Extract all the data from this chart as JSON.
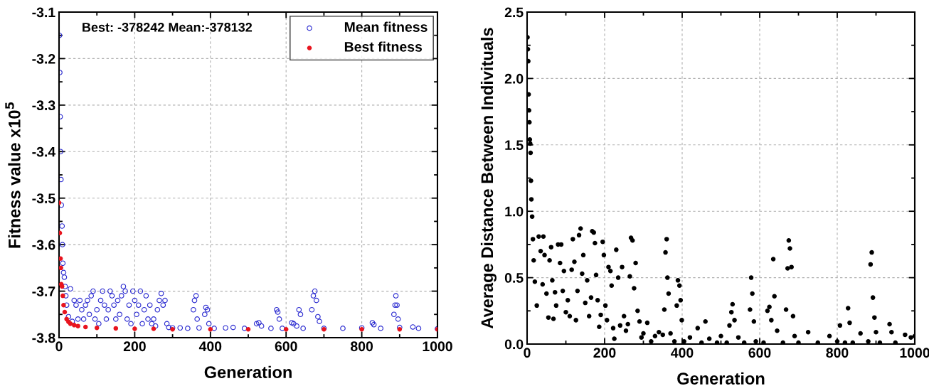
{
  "chart_data": [
    {
      "type": "scatter",
      "xlabel": "Generation",
      "ylabel": "Fitness value x10$^{5}$",
      "annotations": [
        "Best: -378242 Mean:-378132"
      ],
      "xlim": [
        0,
        1000
      ],
      "xticks": [
        0,
        200,
        400,
        600,
        800,
        1000
      ],
      "ylim": [
        -3.8,
        -3.1
      ],
      "yticks": [
        -3.8,
        -3.7,
        -3.6,
        -3.5,
        -3.4,
        -3.3,
        -3.2,
        -3.1
      ],
      "grid": true,
      "legend": "top right",
      "marker": "circle",
      "series": [
        {
          "name": "Mean fitness",
          "color": "#2b2bd0",
          "x": [
            1,
            2,
            3,
            4,
            5,
            6,
            8,
            9,
            10,
            12,
            14,
            16,
            18,
            20,
            25,
            30,
            35,
            40,
            45,
            50,
            55,
            60,
            65,
            70,
            75,
            80,
            85,
            90,
            95,
            100,
            105,
            110,
            115,
            120,
            125,
            130,
            135,
            140,
            145,
            150,
            155,
            160,
            165,
            170,
            175,
            180,
            185,
            190,
            195,
            200,
            205,
            210,
            215,
            220,
            225,
            230,
            235,
            240,
            245,
            250,
            255,
            260,
            265,
            270,
            275,
            280,
            285,
            290,
            300,
            320,
            340,
            355,
            358,
            362,
            365,
            370,
            385,
            388,
            392,
            396,
            410,
            440,
            460,
            490,
            522,
            528,
            535,
            560,
            575,
            578,
            582,
            590,
            615,
            620,
            628,
            634,
            638,
            645,
            668,
            672,
            676,
            680,
            684,
            688,
            700,
            750,
            800,
            828,
            832,
            850,
            885,
            888,
            890,
            893,
            896,
            900,
            935,
            950,
            1000
          ],
          "values": [
            -3.15,
            -3.23,
            -3.325,
            -3.4,
            -3.46,
            -3.515,
            -3.56,
            -3.6,
            -3.64,
            -3.66,
            -3.67,
            -3.69,
            -3.71,
            -3.73,
            -3.755,
            -3.695,
            -3.765,
            -3.72,
            -3.73,
            -3.76,
            -3.72,
            -3.74,
            -3.76,
            -3.73,
            -3.72,
            -3.75,
            -3.71,
            -3.7,
            -3.76,
            -3.74,
            -3.77,
            -3.72,
            -3.7,
            -3.73,
            -3.76,
            -3.74,
            -3.7,
            -3.71,
            -3.73,
            -3.76,
            -3.72,
            -3.75,
            -3.71,
            -3.69,
            -3.7,
            -3.76,
            -3.73,
            -3.77,
            -3.7,
            -3.72,
            -3.75,
            -3.73,
            -3.7,
            -3.77,
            -3.74,
            -3.71,
            -3.76,
            -3.73,
            -3.77,
            -3.76,
            -3.775,
            -3.74,
            -3.72,
            -3.705,
            -3.73,
            -3.72,
            -3.77,
            -3.778,
            -3.779,
            -3.779,
            -3.78,
            -3.74,
            -3.72,
            -3.71,
            -3.76,
            -3.779,
            -3.75,
            -3.735,
            -3.74,
            -3.77,
            -3.78,
            -3.779,
            -3.778,
            -3.78,
            -3.77,
            -3.768,
            -3.775,
            -3.78,
            -3.74,
            -3.745,
            -3.76,
            -3.78,
            -3.768,
            -3.77,
            -3.775,
            -3.74,
            -3.75,
            -3.78,
            -3.74,
            -3.71,
            -3.7,
            -3.72,
            -3.755,
            -3.765,
            -3.78,
            -3.78,
            -3.779,
            -3.768,
            -3.772,
            -3.78,
            -3.75,
            -3.73,
            -3.71,
            -3.73,
            -3.76,
            -3.778,
            -3.777,
            -3.78,
            -3.781
          ]
        },
        {
          "name": "Best fitness",
          "color": "#e8141e",
          "x": [
            0,
            2,
            4,
            5,
            6,
            8,
            10,
            12,
            15,
            20,
            25,
            30,
            40,
            50,
            70,
            100,
            150,
            200,
            250,
            300,
            400,
            500,
            600,
            700,
            800,
            900,
            1000
          ],
          "values": [
            -3.51,
            -3.575,
            -3.63,
            -3.65,
            -3.685,
            -3.69,
            -3.71,
            -3.73,
            -3.745,
            -3.76,
            -3.766,
            -3.77,
            -3.773,
            -3.775,
            -3.777,
            -3.779,
            -3.78,
            -3.781,
            -3.781,
            -3.782,
            -3.782,
            -3.782,
            -3.782,
            -3.782,
            -3.782,
            -3.782,
            -3.782
          ]
        }
      ]
    },
    {
      "type": "scatter",
      "xlabel": "Generation",
      "ylabel": "Average Distance Between Indivituals",
      "xlim": [
        0,
        1000
      ],
      "xticks": [
        0,
        200,
        400,
        600,
        800,
        1000
      ],
      "ylim": [
        0,
        2.5
      ],
      "yticks": [
        {
          "value": 0,
          "label": "0.0"
        },
        0.5,
        {
          "value": 1,
          "label": "1.0"
        },
        1.5,
        {
          "value": 2,
          "label": "2.0"
        },
        2.5
      ],
      "grid": true,
      "marker": "circle",
      "series": [
        {
          "color": "#000000",
          "x": [
            1,
            2,
            3,
            4,
            5,
            6,
            7,
            8,
            9,
            10,
            11,
            13,
            15,
            17,
            20,
            25,
            30,
            35,
            40,
            42,
            45,
            50,
            55,
            58,
            62,
            65,
            68,
            72,
            75,
            80,
            85,
            88,
            92,
            95,
            100,
            105,
            110,
            115,
            118,
            122,
            126,
            130,
            134,
            138,
            142,
            145,
            150,
            155,
            160,
            165,
            168,
            172,
            175,
            178,
            182,
            186,
            190,
            195,
            198,
            202,
            206,
            210,
            215,
            218,
            222,
            225,
            230,
            235,
            240,
            245,
            250,
            255,
            260,
            265,
            268,
            272,
            276,
            280,
            285,
            290,
            295,
            300,
            310,
            320,
            330,
            340,
            350,
            354,
            357,
            360,
            362,
            365,
            370,
            380,
            386,
            389,
            393,
            396,
            399,
            405,
            420,
            440,
            450,
            460,
            470,
            490,
            500,
            515,
            522,
            527,
            530,
            535,
            545,
            560,
            575,
            578,
            581,
            585,
            590,
            610,
            620,
            625,
            630,
            635,
            638,
            645,
            660,
            668,
            672,
            675,
            678,
            682,
            686,
            690,
            700,
            725,
            750,
            780,
            800,
            807,
            820,
            828,
            832,
            840,
            860,
            880,
            886,
            889,
            892,
            896,
            900,
            910,
            935,
            940,
            950,
            975,
            990,
            1000
          ],
          "values": [
            2.31,
            2.22,
            2.13,
            1.88,
            1.76,
            1.67,
            1.54,
            1.51,
            1.44,
            1.23,
            1.09,
            0.96,
            0.79,
            0.63,
            0.47,
            0.29,
            0.81,
            0.7,
            0.45,
            0.81,
            0.67,
            0.38,
            0.2,
            0.63,
            0.73,
            0.48,
            0.19,
            0.39,
            0.29,
            0.75,
            0.61,
            0.75,
            0.4,
            0.55,
            0.24,
            0.33,
            0.21,
            0.56,
            0.79,
            0.62,
            0.18,
            0.4,
            0.82,
            0.87,
            0.53,
            0.67,
            0.31,
            0.48,
            0.21,
            0.35,
            0.85,
            0.84,
            0.76,
            0.52,
            0.33,
            0.13,
            0.22,
            0.77,
            0.67,
            0.29,
            0.18,
            0.58,
            0.55,
            0.44,
            0.12,
            0.04,
            0.71,
            0.5,
            0.14,
            0.58,
            0.21,
            0.1,
            0.15,
            0.51,
            0.8,
            0.78,
            0.42,
            0.61,
            0.25,
            0.17,
            0.05,
            0.08,
            0.16,
            0.02,
            0.06,
            0.09,
            0.07,
            0.26,
            0.69,
            0.79,
            0.5,
            0.38,
            0.08,
            0.02,
            0.29,
            0.48,
            0.44,
            0.33,
            0.18,
            0.02,
            0.05,
            0.12,
            0.01,
            0.17,
            0.04,
            0.01,
            0.06,
            0.01,
            0.14,
            0.24,
            0.3,
            0.18,
            0.05,
            0.01,
            0.26,
            0.5,
            0.38,
            0.17,
            0.02,
            0.01,
            0.25,
            0.28,
            0.18,
            0.64,
            0.36,
            0.1,
            0.01,
            0.26,
            0.57,
            0.78,
            0.72,
            0.58,
            0.21,
            0.06,
            0.01,
            0.09,
            0.01,
            0.06,
            0.02,
            0.14,
            0.01,
            0.27,
            0.16,
            0.01,
            0.08,
            0.02,
            0.6,
            0.69,
            0.35,
            0.2,
            0.09,
            0.01,
            0.15,
            0.09,
            0.01,
            0.07,
            0.05,
            0.06
          ]
        }
      ]
    }
  ]
}
